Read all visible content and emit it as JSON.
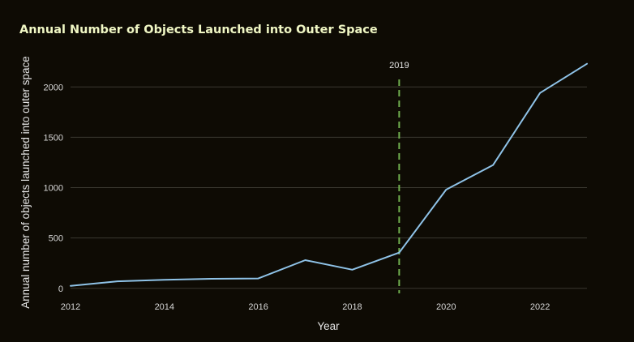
{
  "chart_data": {
    "type": "line",
    "title": "Annual Number of Objects Launched into Outer Space",
    "xlabel": "Year",
    "ylabel": "Annual number of objects launched into outer space",
    "x": [
      2012,
      2013,
      2014,
      2015,
      2016,
      2017,
      2018,
      2019,
      2020,
      2021,
      2022,
      2023
    ],
    "series": [
      {
        "values": [
          25,
          70,
          85,
          95,
          98,
          280,
          185,
          355,
          980,
          1225,
          1940,
          2230
        ]
      }
    ],
    "xlim": [
      2012,
      2023
    ],
    "ylim": [
      -50,
      2300
    ],
    "x_ticks": [
      2012,
      2014,
      2016,
      2018,
      2020,
      2022
    ],
    "y_ticks": [
      0,
      500,
      1000,
      1500,
      2000
    ],
    "grid": "horizontal",
    "line_color": "#8fc3e8",
    "annotation": {
      "x": 2019,
      "label": "2019",
      "style": "dashed",
      "color": "#6fae4e"
    },
    "colors": {
      "background": "#0e0b04",
      "title": "#f0f7c4"
    }
  }
}
